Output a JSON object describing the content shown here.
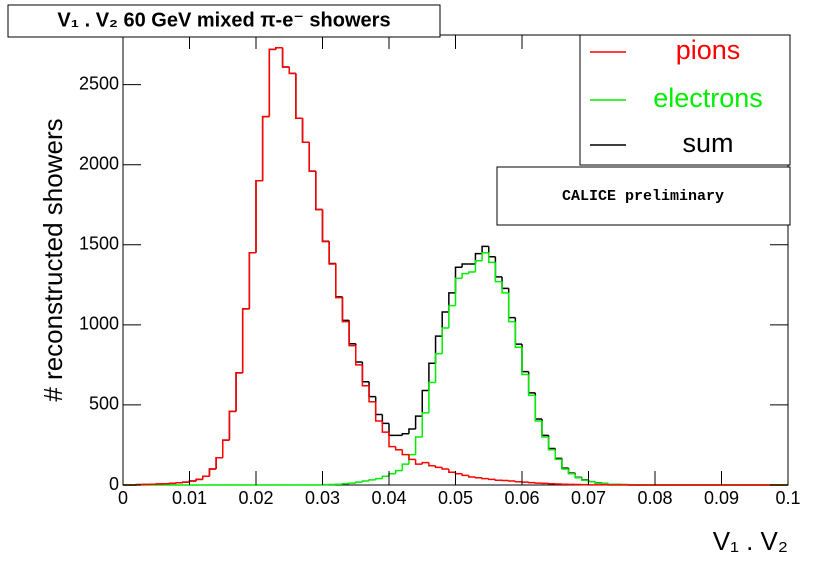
{
  "chart_data": {
    "type": "histogram",
    "title": "V₁ . V₂ 60 GeV mixed π-e⁻ showers",
    "x_label": "V₁ . V₂",
    "y_label": "# reconstructed showers",
    "annotation": "CALICE preliminary",
    "bins": [
      0,
      0.001,
      0.002,
      0.003,
      0.004,
      0.005,
      0.006,
      0.007,
      0.008,
      0.009,
      0.01,
      0.011,
      0.012,
      0.013,
      0.014,
      0.015,
      0.016,
      0.017,
      0.018,
      0.019,
      0.02,
      0.021,
      0.022,
      0.023,
      0.024,
      0.025,
      0.026,
      0.027,
      0.028,
      0.029,
      0.03,
      0.031,
      0.032,
      0.033,
      0.034,
      0.035,
      0.036,
      0.037,
      0.038,
      0.039,
      0.04,
      0.041,
      0.042,
      0.043,
      0.044,
      0.045,
      0.046,
      0.047,
      0.048,
      0.049,
      0.05,
      0.051,
      0.052,
      0.053,
      0.054,
      0.055,
      0.056,
      0.057,
      0.058,
      0.059,
      0.06,
      0.061,
      0.062,
      0.063,
      0.064,
      0.065,
      0.066,
      0.067,
      0.068,
      0.069,
      0.07,
      0.071,
      0.072,
      0.073,
      0.074,
      0.075,
      0.076,
      0.077,
      0.078,
      0.079,
      0.08,
      0.081,
      0.082,
      0.083,
      0.084,
      0.085,
      0.086,
      0.087,
      0.088,
      0.089,
      0.09,
      0.091,
      0.092,
      0.093,
      0.094,
      0.095,
      0.096,
      0.097,
      0.098,
      0.099,
      0.1
    ],
    "series": [
      {
        "name": "pions",
        "color": "#ff0000",
        "values": [
          0,
          0,
          2,
          3,
          5,
          6,
          8,
          10,
          14,
          18,
          25,
          35,
          55,
          100,
          170,
          280,
          460,
          700,
          1100,
          1450,
          1900,
          2300,
          2720,
          2730,
          2610,
          2570,
          2290,
          2140,
          1960,
          1720,
          1520,
          1380,
          1170,
          1020,
          870,
          750,
          620,
          520,
          400,
          330,
          240,
          220,
          190,
          160,
          130,
          140,
          120,
          110,
          100,
          80,
          70,
          60,
          50,
          45,
          40,
          35,
          30,
          28,
          25,
          20,
          18,
          15,
          12,
          10,
          8,
          6,
          5,
          4,
          3,
          2,
          1,
          1,
          1,
          0,
          0,
          0,
          0,
          0,
          0,
          0,
          0,
          0,
          0,
          0,
          0,
          0,
          0,
          0,
          0,
          0,
          0,
          0,
          0,
          0,
          0,
          0,
          0,
          0,
          0,
          0
        ]
      },
      {
        "name": "electrons",
        "color": "#00ee00",
        "values": [
          0,
          0,
          0,
          0,
          0,
          0,
          0,
          0,
          0,
          0,
          0,
          0,
          0,
          0,
          0,
          0,
          0,
          0,
          0,
          0,
          0,
          0,
          0,
          0,
          0,
          0,
          0,
          0,
          0,
          0,
          2,
          3,
          5,
          8,
          12,
          18,
          25,
          32,
          40,
          55,
          70,
          90,
          130,
          190,
          300,
          450,
          640,
          820,
          980,
          1120,
          1290,
          1320,
          1330,
          1400,
          1450,
          1390,
          1270,
          1200,
          1020,
          860,
          690,
          560,
          400,
          300,
          220,
          160,
          100,
          70,
          45,
          30,
          20,
          12,
          8,
          5,
          3,
          2,
          1,
          0,
          0,
          0,
          0,
          0,
          0,
          0,
          0,
          0,
          0,
          0,
          0,
          0,
          0,
          0,
          0,
          0,
          0,
          0,
          0,
          0,
          0,
          0
        ]
      },
      {
        "name": "sum",
        "color": "#000000",
        "values": [
          0,
          0,
          2,
          3,
          5,
          6,
          8,
          10,
          14,
          18,
          25,
          35,
          55,
          100,
          170,
          280,
          460,
          700,
          1100,
          1450,
          1900,
          2300,
          2720,
          2730,
          2610,
          2570,
          2290,
          2140,
          1960,
          1720,
          1522,
          1383,
          1175,
          1028,
          882,
          768,
          645,
          552,
          440,
          385,
          310,
          310,
          320,
          350,
          430,
          590,
          760,
          930,
          1080,
          1200,
          1360,
          1380,
          1380,
          1445,
          1490,
          1425,
          1300,
          1228,
          1045,
          880,
          708,
          575,
          412,
          310,
          228,
          166,
          105,
          74,
          48,
          32,
          21,
          13,
          9,
          5,
          3,
          2,
          1,
          0,
          0,
          0,
          0,
          0,
          0,
          0,
          0,
          0,
          0,
          0,
          0,
          0,
          0,
          0,
          0,
          0,
          0,
          0,
          0,
          0,
          0,
          0
        ]
      }
    ],
    "xlim": [
      0,
      0.1
    ],
    "ylim": [
      0,
      2810
    ],
    "xticks": [
      0,
      0.01,
      0.02,
      0.03,
      0.04,
      0.05,
      0.06,
      0.07,
      0.08,
      0.09,
      0.1
    ],
    "yticks": [
      0,
      500,
      1000,
      1500,
      2000,
      2500
    ],
    "legend": "upper right"
  }
}
